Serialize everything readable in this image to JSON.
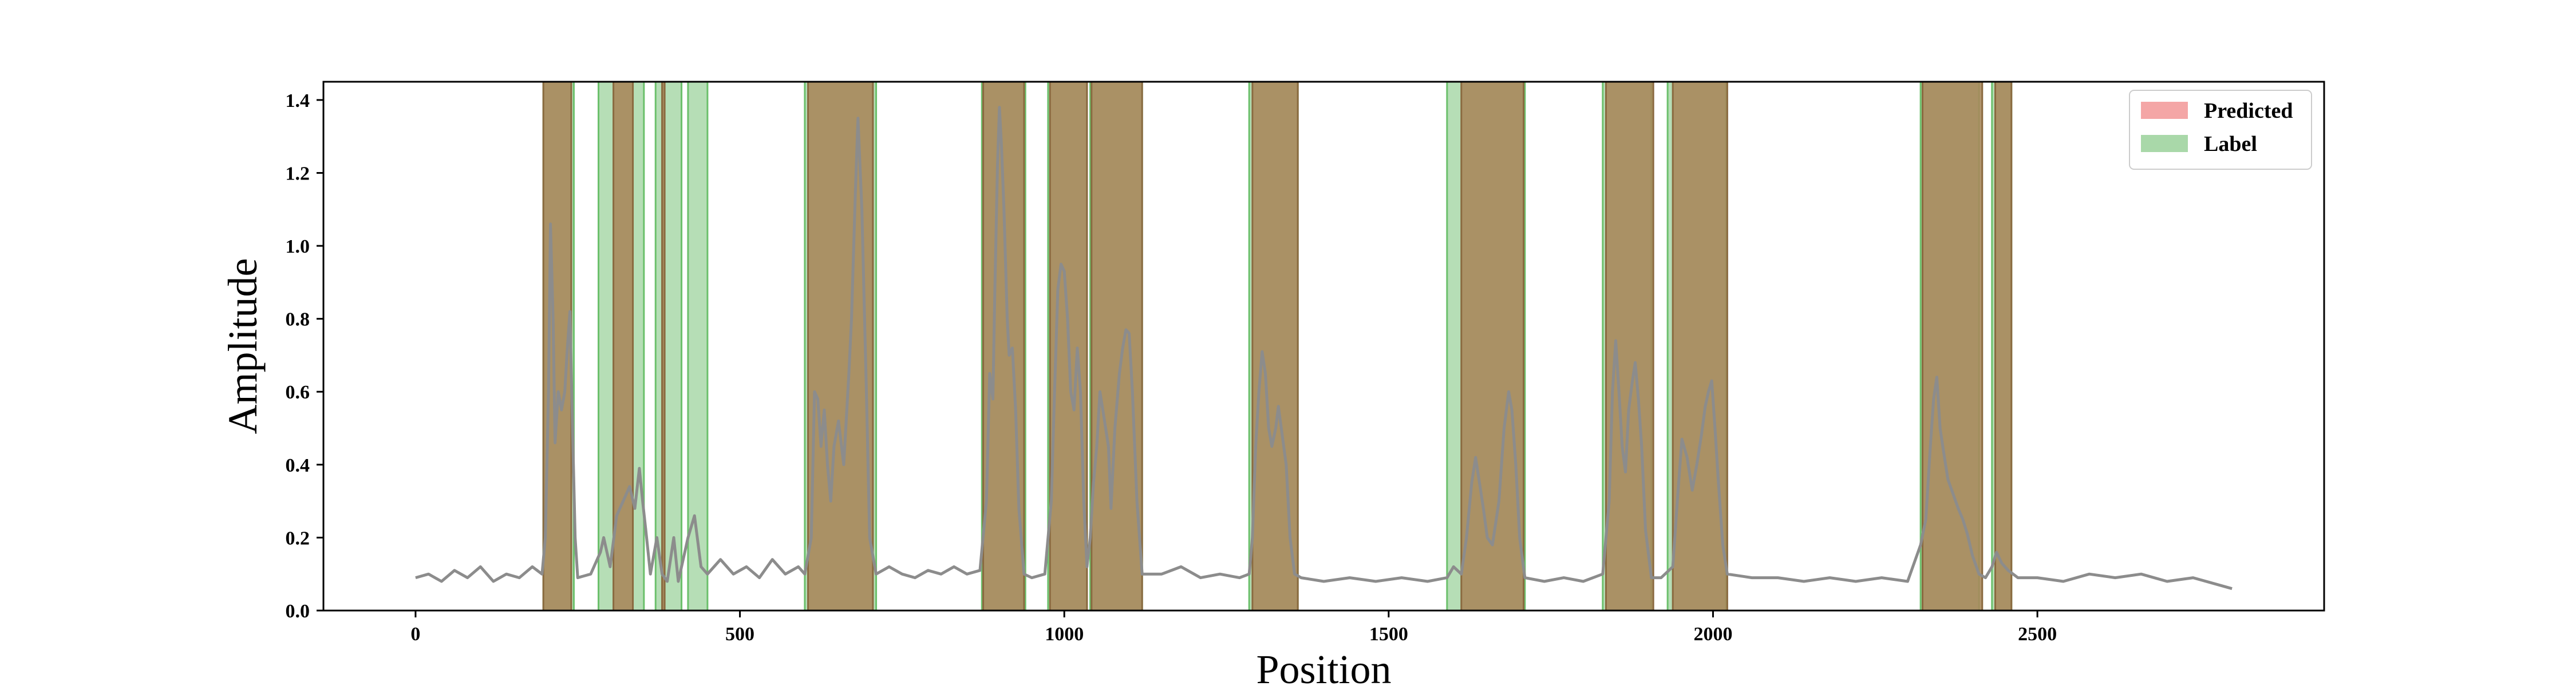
{
  "chart_data": {
    "type": "line",
    "title": "",
    "xlabel": "Position",
    "ylabel": "Amplitude",
    "xlim": [
      -142,
      2942
    ],
    "ylim": [
      0,
      1.45
    ],
    "xticks": [
      0,
      500,
      1000,
      1500,
      2000,
      2500
    ],
    "yticks": [
      0.0,
      0.2,
      0.4,
      0.6,
      0.8,
      1.0,
      1.2,
      1.4
    ],
    "grid": false,
    "legend": {
      "position": "top-right",
      "entries": [
        {
          "name": "Predicted",
          "color": "#f4a6a6"
        },
        {
          "name": "Label",
          "color": "#a9d8a9"
        }
      ]
    },
    "label_regions": [
      [
        197,
        244
      ],
      [
        282,
        352
      ],
      [
        370,
        410
      ],
      [
        420,
        450
      ],
      [
        600,
        710
      ],
      [
        873,
        940
      ],
      [
        975,
        1035
      ],
      [
        1040,
        1120
      ],
      [
        1285,
        1360
      ],
      [
        1590,
        1710
      ],
      [
        1830,
        1905
      ],
      [
        1930,
        2020
      ],
      [
        2320,
        2410
      ],
      [
        2430,
        2460
      ]
    ],
    "predicted_regions": [
      [
        197,
        240
      ],
      [
        305,
        335
      ],
      [
        380,
        384
      ],
      [
        605,
        705
      ],
      [
        875,
        938
      ],
      [
        978,
        1035
      ],
      [
        1042,
        1120
      ],
      [
        1290,
        1360
      ],
      [
        1612,
        1708
      ],
      [
        1835,
        1908
      ],
      [
        1938,
        2022
      ],
      [
        2323,
        2415
      ],
      [
        2435,
        2460
      ]
    ],
    "series": [
      {
        "name": "",
        "color": "#8c8c8c",
        "points": [
          [
            0,
            0.09
          ],
          [
            20,
            0.1
          ],
          [
            40,
            0.08
          ],
          [
            60,
            0.11
          ],
          [
            80,
            0.09
          ],
          [
            100,
            0.12
          ],
          [
            120,
            0.08
          ],
          [
            140,
            0.1
          ],
          [
            160,
            0.09
          ],
          [
            180,
            0.12
          ],
          [
            195,
            0.1
          ],
          [
            200,
            0.2
          ],
          [
            205,
            0.6
          ],
          [
            208,
            1.06
          ],
          [
            212,
            0.8
          ],
          [
            215,
            0.46
          ],
          [
            220,
            0.6
          ],
          [
            225,
            0.55
          ],
          [
            230,
            0.6
          ],
          [
            234,
            0.72
          ],
          [
            238,
            0.82
          ],
          [
            242,
            0.5
          ],
          [
            246,
            0.2
          ],
          [
            250,
            0.09
          ],
          [
            270,
            0.1
          ],
          [
            285,
            0.16
          ],
          [
            290,
            0.2
          ],
          [
            300,
            0.12
          ],
          [
            310,
            0.26
          ],
          [
            320,
            0.3
          ],
          [
            330,
            0.34
          ],
          [
            338,
            0.28
          ],
          [
            345,
            0.39
          ],
          [
            350,
            0.3
          ],
          [
            355,
            0.22
          ],
          [
            362,
            0.1
          ],
          [
            372,
            0.2
          ],
          [
            380,
            0.1
          ],
          [
            388,
            0.08
          ],
          [
            398,
            0.2
          ],
          [
            405,
            0.08
          ],
          [
            420,
            0.2
          ],
          [
            430,
            0.26
          ],
          [
            440,
            0.12
          ],
          [
            450,
            0.1
          ],
          [
            470,
            0.14
          ],
          [
            490,
            0.1
          ],
          [
            510,
            0.12
          ],
          [
            530,
            0.09
          ],
          [
            550,
            0.14
          ],
          [
            570,
            0.1
          ],
          [
            590,
            0.12
          ],
          [
            600,
            0.1
          ],
          [
            610,
            0.2
          ],
          [
            615,
            0.6
          ],
          [
            620,
            0.58
          ],
          [
            625,
            0.45
          ],
          [
            630,
            0.55
          ],
          [
            635,
            0.4
          ],
          [
            640,
            0.3
          ],
          [
            645,
            0.45
          ],
          [
            652,
            0.52
          ],
          [
            660,
            0.4
          ],
          [
            668,
            0.65
          ],
          [
            672,
            0.8
          ],
          [
            678,
            1.15
          ],
          [
            682,
            1.35
          ],
          [
            688,
            1.1
          ],
          [
            695,
            0.6
          ],
          [
            700,
            0.2
          ],
          [
            710,
            0.1
          ],
          [
            730,
            0.12
          ],
          [
            750,
            0.1
          ],
          [
            770,
            0.09
          ],
          [
            790,
            0.11
          ],
          [
            810,
            0.1
          ],
          [
            830,
            0.12
          ],
          [
            850,
            0.1
          ],
          [
            870,
            0.11
          ],
          [
            880,
            0.3
          ],
          [
            885,
            0.65
          ],
          [
            890,
            0.58
          ],
          [
            893,
            0.88
          ],
          [
            897,
            1.22
          ],
          [
            900,
            1.38
          ],
          [
            903,
            1.28
          ],
          [
            907,
            1.1
          ],
          [
            912,
            0.8
          ],
          [
            915,
            0.7
          ],
          [
            920,
            0.72
          ],
          [
            925,
            0.55
          ],
          [
            930,
            0.28
          ],
          [
            938,
            0.1
          ],
          [
            950,
            0.09
          ],
          [
            970,
            0.1
          ],
          [
            980,
            0.3
          ],
          [
            985,
            0.6
          ],
          [
            990,
            0.88
          ],
          [
            995,
            0.95
          ],
          [
            1000,
            0.93
          ],
          [
            1005,
            0.8
          ],
          [
            1010,
            0.6
          ],
          [
            1015,
            0.55
          ],
          [
            1020,
            0.72
          ],
          [
            1025,
            0.6
          ],
          [
            1030,
            0.3
          ],
          [
            1035,
            0.12
          ],
          [
            1040,
            0.2
          ],
          [
            1045,
            0.35
          ],
          [
            1050,
            0.45
          ],
          [
            1055,
            0.6
          ],
          [
            1062,
            0.52
          ],
          [
            1068,
            0.45
          ],
          [
            1072,
            0.28
          ],
          [
            1078,
            0.5
          ],
          [
            1085,
            0.65
          ],
          [
            1090,
            0.72
          ],
          [
            1095,
            0.77
          ],
          [
            1100,
            0.76
          ],
          [
            1105,
            0.6
          ],
          [
            1112,
            0.3
          ],
          [
            1120,
            0.1
          ],
          [
            1150,
            0.1
          ],
          [
            1180,
            0.12
          ],
          [
            1210,
            0.09
          ],
          [
            1240,
            0.1
          ],
          [
            1270,
            0.09
          ],
          [
            1285,
            0.1
          ],
          [
            1290,
            0.2
          ],
          [
            1295,
            0.45
          ],
          [
            1300,
            0.6
          ],
          [
            1305,
            0.71
          ],
          [
            1310,
            0.65
          ],
          [
            1315,
            0.5
          ],
          [
            1320,
            0.45
          ],
          [
            1326,
            0.5
          ],
          [
            1330,
            0.56
          ],
          [
            1336,
            0.48
          ],
          [
            1342,
            0.4
          ],
          [
            1348,
            0.2
          ],
          [
            1355,
            0.1
          ],
          [
            1365,
            0.09
          ],
          [
            1400,
            0.08
          ],
          [
            1440,
            0.09
          ],
          [
            1480,
            0.08
          ],
          [
            1520,
            0.09
          ],
          [
            1560,
            0.08
          ],
          [
            1590,
            0.09
          ],
          [
            1600,
            0.12
          ],
          [
            1612,
            0.1
          ],
          [
            1620,
            0.2
          ],
          [
            1628,
            0.35
          ],
          [
            1634,
            0.42
          ],
          [
            1640,
            0.35
          ],
          [
            1646,
            0.28
          ],
          [
            1652,
            0.2
          ],
          [
            1660,
            0.18
          ],
          [
            1670,
            0.3
          ],
          [
            1678,
            0.5
          ],
          [
            1685,
            0.6
          ],
          [
            1690,
            0.55
          ],
          [
            1696,
            0.4
          ],
          [
            1702,
            0.2
          ],
          [
            1710,
            0.09
          ],
          [
            1740,
            0.08
          ],
          [
            1770,
            0.09
          ],
          [
            1800,
            0.08
          ],
          [
            1830,
            0.1
          ],
          [
            1840,
            0.3
          ],
          [
            1845,
            0.6
          ],
          [
            1850,
            0.74
          ],
          [
            1855,
            0.6
          ],
          [
            1860,
            0.45
          ],
          [
            1865,
            0.38
          ],
          [
            1870,
            0.55
          ],
          [
            1875,
            0.62
          ],
          [
            1880,
            0.68
          ],
          [
            1885,
            0.58
          ],
          [
            1890,
            0.45
          ],
          [
            1896,
            0.22
          ],
          [
            1905,
            0.09
          ],
          [
            1920,
            0.09
          ],
          [
            1938,
            0.12
          ],
          [
            1945,
            0.3
          ],
          [
            1952,
            0.47
          ],
          [
            1960,
            0.42
          ],
          [
            1968,
            0.33
          ],
          [
            1975,
            0.4
          ],
          [
            1982,
            0.48
          ],
          [
            1988,
            0.56
          ],
          [
            1993,
            0.6
          ],
          [
            1998,
            0.63
          ],
          [
            2003,
            0.5
          ],
          [
            2008,
            0.36
          ],
          [
            2015,
            0.18
          ],
          [
            2022,
            0.1
          ],
          [
            2060,
            0.09
          ],
          [
            2100,
            0.09
          ],
          [
            2140,
            0.08
          ],
          [
            2180,
            0.09
          ],
          [
            2220,
            0.08
          ],
          [
            2260,
            0.09
          ],
          [
            2300,
            0.08
          ],
          [
            2320,
            0.18
          ],
          [
            2328,
            0.25
          ],
          [
            2335,
            0.45
          ],
          [
            2340,
            0.58
          ],
          [
            2345,
            0.64
          ],
          [
            2350,
            0.5
          ],
          [
            2355,
            0.44
          ],
          [
            2362,
            0.36
          ],
          [
            2370,
            0.32
          ],
          [
            2378,
            0.28
          ],
          [
            2385,
            0.25
          ],
          [
            2392,
            0.21
          ],
          [
            2400,
            0.15
          ],
          [
            2410,
            0.1
          ],
          [
            2420,
            0.09
          ],
          [
            2430,
            0.12
          ],
          [
            2437,
            0.16
          ],
          [
            2445,
            0.13
          ],
          [
            2455,
            0.11
          ],
          [
            2470,
            0.09
          ],
          [
            2500,
            0.09
          ],
          [
            2540,
            0.08
          ],
          [
            2580,
            0.1
          ],
          [
            2620,
            0.09
          ],
          [
            2660,
            0.1
          ],
          [
            2700,
            0.08
          ],
          [
            2740,
            0.09
          ],
          [
            2780,
            0.07
          ],
          [
            2800,
            0.06
          ]
        ]
      }
    ]
  }
}
